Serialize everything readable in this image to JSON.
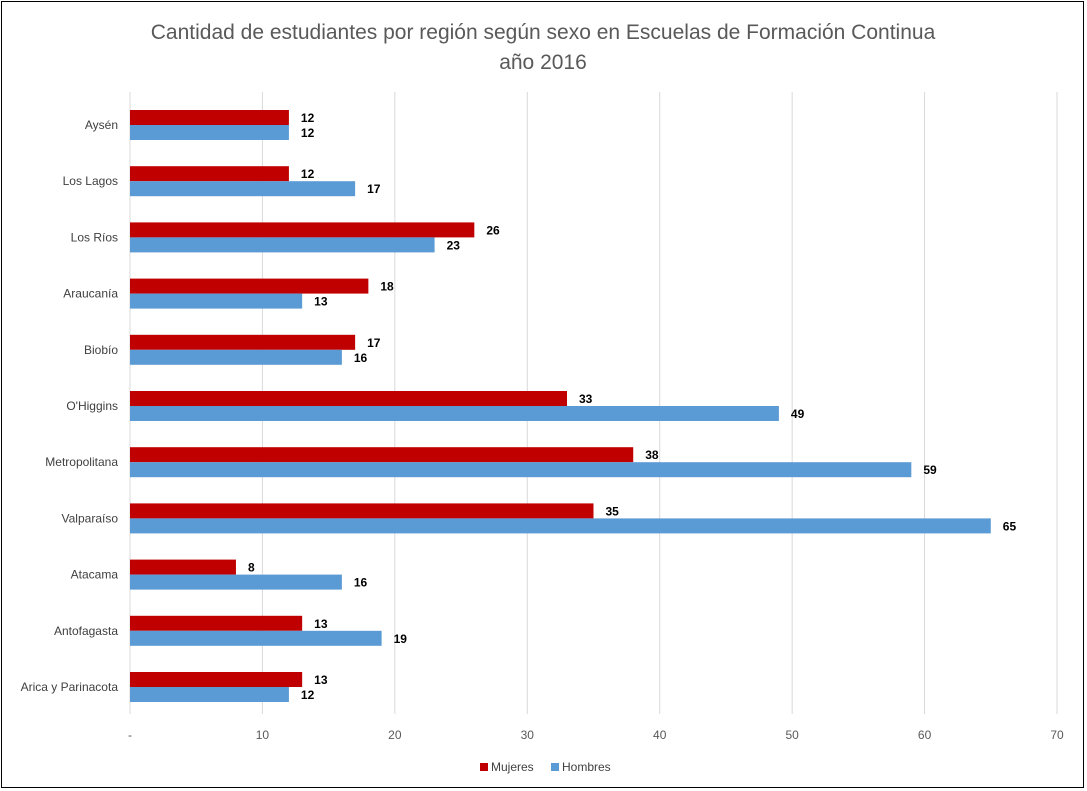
{
  "chart_data": {
    "type": "bar",
    "orientation": "horizontal",
    "title_line1": "Cantidad de estudiantes por región según sexo en Escuelas de Formación Continua",
    "title_line2": "año 2016",
    "categories": [
      "Aysén",
      "Los Lagos",
      "Los Ríos",
      "Araucanía",
      "Biobío",
      "O'Higgins",
      "Metropolitana",
      "Valparaíso",
      "Atacama",
      "Antofagasta",
      "Arica y Parinacota"
    ],
    "series": [
      {
        "name": "Mujeres",
        "color": "#C00000",
        "values": [
          12,
          12,
          26,
          18,
          17,
          33,
          38,
          35,
          8,
          13,
          13
        ]
      },
      {
        "name": "Hombres",
        "color": "#5B9BD5",
        "values": [
          12,
          17,
          23,
          13,
          16,
          49,
          59,
          65,
          16,
          19,
          12
        ]
      }
    ],
    "xlim": [
      0,
      70
    ],
    "x_ticks": [
      "-",
      "10",
      "20",
      "30",
      "40",
      "50",
      "60",
      "70"
    ],
    "grid": true,
    "legend_position": "bottom",
    "data_labels": true
  }
}
